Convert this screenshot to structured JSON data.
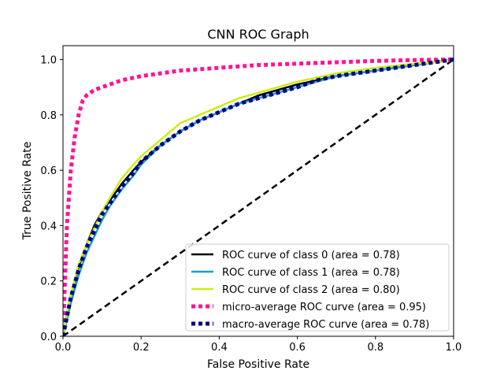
{
  "chart_data": {
    "type": "line",
    "title": "CNN ROC Graph",
    "xlabel": "False Positive Rate",
    "ylabel": "True Positive Rate",
    "xlim": [
      0.0,
      1.0
    ],
    "ylim": [
      0.0,
      1.05
    ],
    "xticks": [
      "0.0",
      "0.2",
      "0.4",
      "0.6",
      "0.8",
      "1.0"
    ],
    "yticks": [
      "0.0",
      "0.2",
      "0.4",
      "0.6",
      "0.8",
      "1.0"
    ],
    "grid": false,
    "legend_position": "lower right",
    "series": [
      {
        "name": "ROC curve of class 0 (area = 0.78)",
        "color": "#000000",
        "style": "solid",
        "x": [
          0.0,
          0.01,
          0.02,
          0.04,
          0.06,
          0.08,
          0.1,
          0.12,
          0.15,
          0.18,
          0.2,
          0.25,
          0.3,
          0.35,
          0.4,
          0.45,
          0.5,
          0.55,
          0.6,
          0.65,
          0.7,
          0.8,
          0.9,
          0.95,
          1.0
        ],
        "y": [
          0.0,
          0.08,
          0.15,
          0.25,
          0.33,
          0.4,
          0.45,
          0.49,
          0.55,
          0.6,
          0.63,
          0.69,
          0.74,
          0.78,
          0.81,
          0.84,
          0.87,
          0.89,
          0.91,
          0.925,
          0.94,
          0.96,
          0.98,
          0.99,
          1.0
        ]
      },
      {
        "name": "ROC curve of class 1 (area = 0.78)",
        "color": "#1a9fcc",
        "style": "solid",
        "x": [
          0.0,
          0.01,
          0.02,
          0.04,
          0.06,
          0.08,
          0.1,
          0.12,
          0.15,
          0.18,
          0.2,
          0.25,
          0.3,
          0.35,
          0.4,
          0.45,
          0.5,
          0.55,
          0.6,
          0.65,
          0.7,
          0.8,
          0.9,
          0.95,
          1.0
        ],
        "y": [
          0.0,
          0.06,
          0.12,
          0.22,
          0.3,
          0.36,
          0.42,
          0.47,
          0.53,
          0.58,
          0.62,
          0.69,
          0.74,
          0.78,
          0.81,
          0.84,
          0.86,
          0.88,
          0.9,
          0.92,
          0.94,
          0.96,
          0.98,
          0.99,
          1.0
        ]
      },
      {
        "name": "ROC curve of class 2 (area = 0.80)",
        "color": "#ccee11",
        "style": "solid",
        "x": [
          0.0,
          0.01,
          0.02,
          0.04,
          0.06,
          0.08,
          0.1,
          0.12,
          0.15,
          0.18,
          0.2,
          0.25,
          0.3,
          0.35,
          0.4,
          0.45,
          0.5,
          0.55,
          0.6,
          0.65,
          0.7,
          0.8,
          0.9,
          0.95,
          1.0
        ],
        "y": [
          0.0,
          0.08,
          0.15,
          0.26,
          0.33,
          0.39,
          0.45,
          0.5,
          0.57,
          0.62,
          0.65,
          0.71,
          0.77,
          0.8,
          0.83,
          0.86,
          0.88,
          0.9,
          0.92,
          0.935,
          0.95,
          0.97,
          0.985,
          0.99,
          1.0
        ]
      },
      {
        "name": "micro-average ROC curve (area = 0.95)",
        "color": "#ff1493",
        "style": "dotted",
        "x": [
          0.0,
          0.005,
          0.01,
          0.02,
          0.03,
          0.04,
          0.05,
          0.06,
          0.08,
          0.1,
          0.12,
          0.15,
          0.2,
          0.25,
          0.3,
          0.4,
          0.5,
          0.6,
          0.7,
          0.8,
          0.9,
          1.0
        ],
        "y": [
          0.0,
          0.2,
          0.4,
          0.6,
          0.72,
          0.8,
          0.85,
          0.87,
          0.89,
          0.9,
          0.91,
          0.925,
          0.94,
          0.95,
          0.96,
          0.97,
          0.98,
          0.985,
          0.99,
          0.995,
          0.998,
          1.0
        ]
      },
      {
        "name": "macro-average ROC curve (area = 0.78)",
        "color": "#000080",
        "style": "dotted",
        "x": [
          0.0,
          0.01,
          0.02,
          0.04,
          0.06,
          0.08,
          0.1,
          0.12,
          0.15,
          0.18,
          0.2,
          0.25,
          0.3,
          0.35,
          0.4,
          0.45,
          0.5,
          0.55,
          0.6,
          0.65,
          0.7,
          0.8,
          0.9,
          0.95,
          1.0
        ],
        "y": [
          0.0,
          0.07,
          0.14,
          0.24,
          0.32,
          0.38,
          0.44,
          0.48,
          0.54,
          0.59,
          0.63,
          0.69,
          0.74,
          0.78,
          0.81,
          0.84,
          0.86,
          0.88,
          0.9,
          0.925,
          0.94,
          0.96,
          0.98,
          0.99,
          1.0
        ]
      }
    ],
    "reference_line": {
      "color": "#000000",
      "style": "dashed",
      "x": [
        0.0,
        1.0
      ],
      "y": [
        0.0,
        1.0
      ]
    }
  }
}
